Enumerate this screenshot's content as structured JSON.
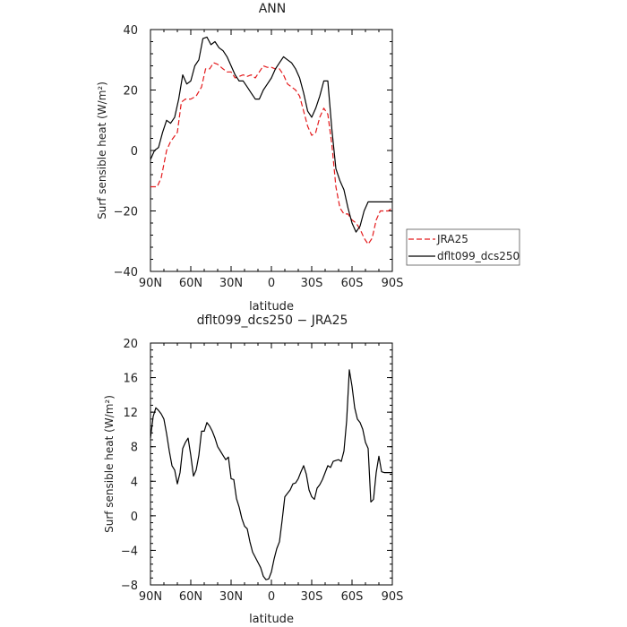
{
  "chart_data": [
    {
      "type": "line",
      "title": "ANN",
      "xlabel": "latitude",
      "ylabel": "Surf sensible heat (W/m²)",
      "xlim": [
        -90,
        90
      ],
      "ylim": [
        -40,
        40
      ],
      "xticks": [
        "90N",
        "60N",
        "30N",
        "0",
        "30S",
        "60S",
        "90S"
      ],
      "yticks": [
        "40",
        "20",
        "0",
        "−20",
        "−40"
      ],
      "legend_position": "right",
      "series": [
        {
          "name": "JRA25",
          "color": "#e41a1c",
          "dashed": true,
          "x": [
            -90,
            -85,
            -82,
            -78,
            -75,
            -70,
            -67,
            -64,
            -60,
            -56,
            -52,
            -49,
            -46,
            -43,
            -40,
            -36,
            -33,
            -30,
            -27,
            -24,
            -21,
            -18,
            -15,
            -12,
            -9,
            -6,
            -3,
            0,
            3,
            6,
            9,
            12,
            15,
            18,
            21,
            24,
            27,
            30,
            33,
            36,
            39,
            42,
            45,
            48,
            51,
            54,
            57,
            60,
            63,
            66,
            69,
            72,
            75,
            78,
            81,
            84,
            87,
            90
          ],
          "y": [
            -12,
            -12,
            -9,
            0,
            3,
            6,
            16,
            17,
            17,
            18,
            21,
            27,
            27,
            29,
            28.5,
            27,
            26,
            26,
            24,
            24.5,
            25,
            24.5,
            25,
            24,
            26,
            28,
            27.5,
            27.5,
            27,
            27,
            25,
            22,
            21,
            20,
            18,
            13,
            8,
            5,
            6,
            11,
            14,
            12,
            2,
            -12,
            -19,
            -21,
            -21,
            -23,
            -24,
            -26,
            -29,
            -31,
            -29,
            -23,
            -20,
            -20,
            -20,
            -19
          ]
        },
        {
          "name": "dflt099_dcs250",
          "color": "#000000",
          "dashed": false,
          "x": [
            -90,
            -87,
            -84,
            -81,
            -78,
            -75,
            -72,
            -69,
            -66,
            -63,
            -60,
            -57,
            -54,
            -51,
            -48,
            -45,
            -42,
            -39,
            -36,
            -33,
            -30,
            -27,
            -24,
            -21,
            -18,
            -15,
            -12,
            -9,
            -6,
            -3,
            0,
            3,
            6,
            9,
            12,
            15,
            18,
            21,
            24,
            27,
            30,
            33,
            36,
            39,
            42,
            45,
            48,
            51,
            54,
            57,
            60,
            63,
            66,
            69,
            72,
            75,
            78,
            81,
            84,
            87,
            90
          ],
          "y": [
            -3,
            0,
            1,
            6,
            10,
            9,
            11,
            17,
            25,
            22,
            23,
            28,
            30,
            37,
            37.5,
            35,
            36,
            34,
            33,
            31,
            28,
            25,
            23,
            23,
            21,
            19,
            17,
            17,
            20,
            22,
            24,
            27,
            29,
            31,
            30,
            29,
            27,
            24,
            19,
            13,
            11,
            14,
            18,
            23,
            23,
            7,
            -6,
            -10,
            -13,
            -19,
            -24,
            -27,
            -25,
            -20,
            -17,
            -17,
            -17,
            -17,
            -17,
            -17,
            -17
          ]
        }
      ]
    },
    {
      "type": "line",
      "title": "dflt099_dcs250 − JRA25",
      "xlabel": "latitude",
      "ylabel": "Surf sensible heat (W/m²)",
      "xlim": [
        -90,
        90
      ],
      "ylim": [
        -8,
        20
      ],
      "xticks": [
        "90N",
        "60N",
        "30N",
        "0",
        "30S",
        "60S",
        "90S"
      ],
      "yticks": [
        "20",
        "16",
        "12",
        "8",
        "4",
        "0",
        "−4",
        "−8"
      ],
      "series": [
        {
          "color": "#000000",
          "dashed": false,
          "x": [
            -90,
            -88,
            -86,
            -84,
            -82,
            -80,
            -78,
            -76,
            -74,
            -72,
            -70,
            -68,
            -66,
            -64,
            -62,
            -60,
            -58,
            -56,
            -54,
            -52,
            -50,
            -48,
            -46,
            -44,
            -42,
            -40,
            -38,
            -36,
            -34,
            -32,
            -30,
            -28,
            -26,
            -24,
            -22,
            -20,
            -18,
            -16,
            -14,
            -12,
            -10,
            -8,
            -6,
            -4,
            -2,
            0,
            2,
            4,
            6,
            8,
            10,
            12,
            14,
            16,
            18,
            20,
            22,
            24,
            26,
            28,
            30,
            32,
            34,
            36,
            38,
            40,
            42,
            44,
            46,
            48,
            50,
            52,
            54,
            56,
            58,
            60,
            62,
            64,
            66,
            68,
            70,
            72,
            74,
            76,
            78,
            80,
            82,
            84,
            86,
            88,
            90
          ],
          "y": [
            9,
            11.5,
            12.5,
            12.2,
            11.8,
            11.2,
            9.5,
            7.5,
            5.8,
            5.3,
            3.7,
            5,
            7.8,
            8.5,
            9,
            7,
            4.6,
            5.3,
            7,
            9.8,
            9.8,
            10.8,
            10.4,
            9.8,
            9,
            8,
            7.5,
            7,
            6.5,
            6.8,
            4.3,
            4.2,
            2,
            1,
            -0.3,
            -1.2,
            -1.5,
            -3,
            -4.2,
            -4.8,
            -5.4,
            -6,
            -7,
            -7.4,
            -7.3,
            -6.5,
            -5,
            -3.8,
            -3,
            -0.5,
            2.2,
            2.6,
            3,
            3.7,
            3.8,
            4.3,
            5.1,
            5.8,
            4.8,
            3,
            2.2,
            1.9,
            3.2,
            3.6,
            4.2,
            5,
            5.8,
            5.6,
            6.3,
            6.4,
            6.5,
            6.3,
            7.5,
            11,
            16.9,
            15,
            12.5,
            11.2,
            10.8,
            10,
            8.5,
            7.8,
            1.6,
            1.9,
            5,
            6.9,
            5.1,
            5,
            5,
            5,
            5
          ]
        }
      ]
    }
  ]
}
